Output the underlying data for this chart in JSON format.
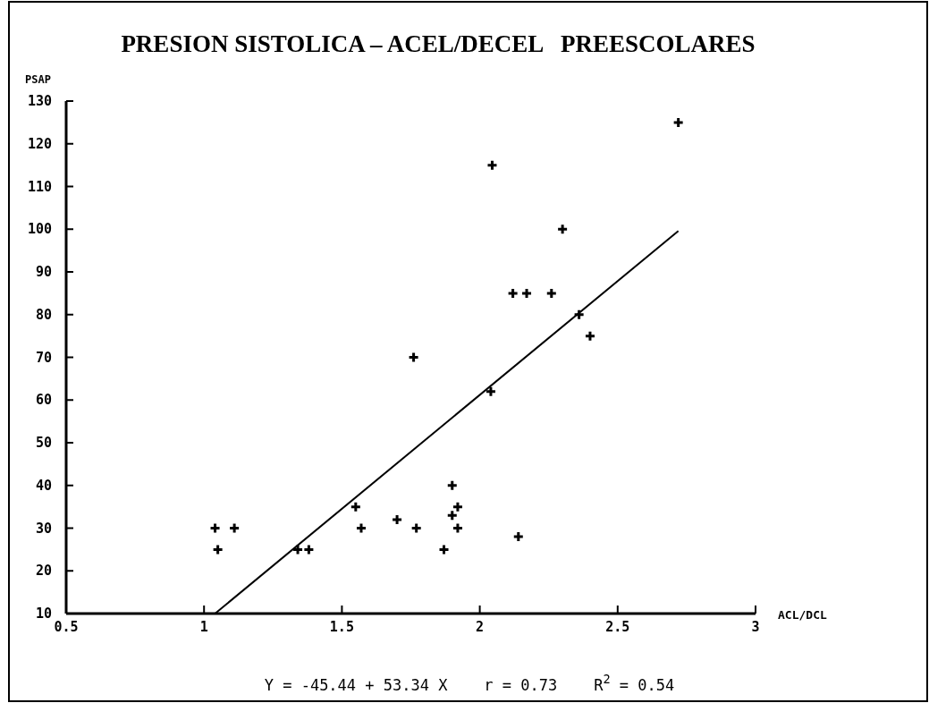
{
  "chart_data": {
    "type": "scatter",
    "title": "PRESION SISTOLICA – ACEL/DECEL   PREESCOLARES",
    "xlabel": "ACL/DCL",
    "ylabel": "PSAP",
    "xlim": [
      0.5,
      3
    ],
    "xticks": [
      0.5,
      1,
      1.5,
      2,
      2.5,
      3
    ],
    "ylim": [
      10,
      130
    ],
    "yticks": [
      10,
      20,
      30,
      40,
      50,
      60,
      70,
      80,
      90,
      100,
      110,
      120,
      130
    ],
    "grid": false,
    "series": [
      {
        "marker": "cross",
        "color": "#000000",
        "x": [
          1.04,
          1.05,
          1.11,
          1.34,
          1.38,
          1.55,
          1.57,
          1.7,
          1.77,
          1.87,
          1.9,
          1.9,
          1.92,
          1.92,
          2.14,
          2.04,
          2.045,
          1.76,
          2.3,
          2.12,
          2.17,
          2.26,
          2.36,
          2.4,
          2.72
        ],
        "values": [
          30,
          25,
          30,
          25,
          25,
          35,
          30,
          32,
          30,
          25,
          40,
          33,
          35,
          30,
          28,
          62,
          115,
          70,
          100,
          85,
          85,
          85,
          80,
          75,
          125
        ]
      },
      {
        "type": "line",
        "color": "#000000",
        "line_style": "solid",
        "x": [
          1.04,
          2.72
        ],
        "values": [
          10,
          99.6
        ]
      }
    ],
    "annotations": [
      "Y = -45.44 + 53.34 X    r = 0.73    R$^{2}$ = 0.54"
    ]
  }
}
